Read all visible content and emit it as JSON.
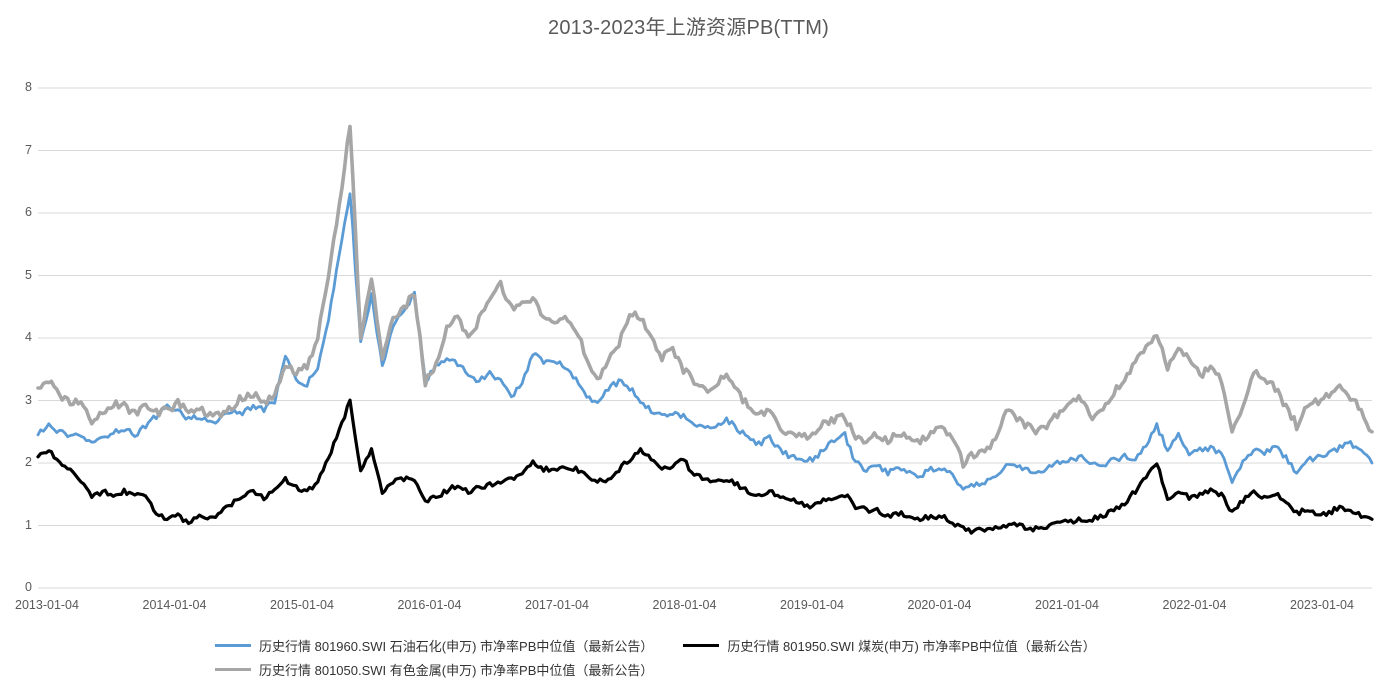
{
  "chart_data": {
    "type": "line",
    "title": "2013-2023年上游资源PB(TTM)",
    "xlabel": "",
    "ylabel": "",
    "ylim": [
      0,
      8
    ],
    "y_ticks": [
      0,
      1,
      2,
      3,
      4,
      5,
      6,
      7,
      8
    ],
    "x_tick_labels": [
      "2013-01-04",
      "2014-01-04",
      "2015-01-04",
      "2016-01-04",
      "2017-01-04",
      "2018-01-04",
      "2019-01-04",
      "2020-01-04",
      "2021-01-04",
      "2022-01-04",
      "2023-01-04"
    ],
    "x_resolution": "monthly 2013-01 to 2023-05",
    "grid": "horizontal",
    "legend_position": "bottom",
    "colors": {
      "grid": "#D9D9D9",
      "axis_text": "#595959",
      "title_text": "#595959",
      "legend_text": "#333333"
    },
    "series": [
      {
        "name": "petroleum-petrochemical",
        "label": "历史行情 801960.SWI 石油石化(申万) 市净率PB中位值（最新公告）",
        "color": "#5B9BD5",
        "values": [
          2.45,
          2.6,
          2.5,
          2.4,
          2.45,
          2.3,
          2.4,
          2.5,
          2.55,
          2.45,
          2.6,
          2.75,
          2.9,
          2.85,
          2.7,
          2.75,
          2.65,
          2.7,
          2.85,
          2.8,
          2.9,
          2.85,
          3.0,
          3.7,
          3.3,
          3.25,
          3.55,
          4.3,
          5.3,
          6.35,
          3.9,
          4.7,
          3.55,
          4.2,
          4.4,
          4.7,
          3.3,
          3.55,
          3.7,
          3.6,
          3.4,
          3.3,
          3.45,
          3.3,
          3.05,
          3.3,
          3.75,
          3.6,
          3.65,
          3.55,
          3.35,
          3.05,
          3.0,
          3.2,
          3.3,
          3.2,
          3.0,
          2.85,
          2.75,
          2.8,
          2.75,
          2.6,
          2.55,
          2.6,
          2.7,
          2.55,
          2.4,
          2.3,
          2.4,
          2.2,
          2.1,
          2.05,
          2.05,
          2.2,
          2.35,
          2.45,
          2.0,
          1.9,
          1.95,
          1.85,
          1.95,
          1.85,
          1.8,
          1.9,
          1.9,
          1.8,
          1.55,
          1.65,
          1.7,
          1.75,
          2.0,
          1.95,
          1.9,
          1.85,
          1.95,
          2.0,
          2.05,
          2.1,
          2.0,
          1.95,
          2.05,
          2.1,
          2.05,
          2.3,
          2.6,
          2.2,
          2.45,
          2.15,
          2.2,
          2.25,
          2.15,
          1.7,
          2.0,
          2.2,
          2.15,
          2.25,
          2.1,
          1.85,
          2.05,
          2.1,
          2.15,
          2.25,
          2.3,
          2.2,
          2.0
        ]
      },
      {
        "name": "coal",
        "label": "历史行情 801950.SWI 煤炭(申万) 市净率PB中位值（最新公告）",
        "color": "#000000",
        "values": [
          2.1,
          2.2,
          2.0,
          1.9,
          1.7,
          1.45,
          1.55,
          1.5,
          1.55,
          1.5,
          1.45,
          1.2,
          1.1,
          1.15,
          1.05,
          1.15,
          1.1,
          1.2,
          1.35,
          1.45,
          1.55,
          1.45,
          1.6,
          1.75,
          1.6,
          1.55,
          1.7,
          2.1,
          2.5,
          3.0,
          1.85,
          2.2,
          1.55,
          1.7,
          1.75,
          1.7,
          1.4,
          1.45,
          1.55,
          1.65,
          1.55,
          1.6,
          1.65,
          1.7,
          1.75,
          1.85,
          2.0,
          1.9,
          1.9,
          1.95,
          1.9,
          1.8,
          1.7,
          1.75,
          1.9,
          2.05,
          2.2,
          2.05,
          1.9,
          1.95,
          2.05,
          1.8,
          1.75,
          1.7,
          1.75,
          1.65,
          1.55,
          1.5,
          1.55,
          1.45,
          1.4,
          1.35,
          1.3,
          1.4,
          1.45,
          1.5,
          1.3,
          1.25,
          1.25,
          1.15,
          1.2,
          1.15,
          1.1,
          1.15,
          1.15,
          1.05,
          0.95,
          0.9,
          0.95,
          0.95,
          1.0,
          1.0,
          0.95,
          0.95,
          1.0,
          1.05,
          1.05,
          1.1,
          1.1,
          1.15,
          1.25,
          1.35,
          1.55,
          1.8,
          2.0,
          1.4,
          1.55,
          1.45,
          1.5,
          1.55,
          1.5,
          1.2,
          1.4,
          1.55,
          1.45,
          1.5,
          1.4,
          1.2,
          1.25,
          1.2,
          1.2,
          1.3,
          1.25,
          1.15,
          1.1
        ]
      },
      {
        "name": "nonferrous-metals",
        "label": "历史行情 801050.SWI 有色金属(申万) 市净率PB中位值（最新公告）",
        "color": "#A6A6A6",
        "values": [
          3.2,
          3.35,
          3.1,
          2.95,
          3.0,
          2.6,
          2.8,
          2.95,
          2.9,
          2.8,
          2.9,
          2.8,
          2.85,
          2.95,
          2.8,
          2.85,
          2.75,
          2.8,
          2.9,
          3.05,
          3.1,
          2.95,
          3.1,
          3.6,
          3.45,
          3.55,
          4.0,
          5.0,
          6.1,
          7.4,
          4.0,
          5.0,
          3.65,
          4.35,
          4.5,
          4.7,
          3.3,
          3.6,
          4.15,
          4.35,
          4.0,
          4.3,
          4.6,
          4.85,
          4.5,
          4.55,
          4.65,
          4.35,
          4.2,
          4.3,
          4.15,
          3.7,
          3.35,
          3.65,
          3.9,
          4.4,
          4.35,
          4.0,
          3.7,
          3.8,
          3.5,
          3.3,
          3.15,
          3.25,
          3.4,
          3.15,
          2.9,
          2.75,
          2.9,
          2.5,
          2.45,
          2.4,
          2.45,
          2.65,
          2.7,
          2.75,
          2.4,
          2.35,
          2.45,
          2.35,
          2.5,
          2.4,
          2.35,
          2.5,
          2.55,
          2.45,
          2.0,
          2.15,
          2.2,
          2.35,
          2.85,
          2.7,
          2.6,
          2.5,
          2.65,
          2.8,
          2.95,
          3.05,
          2.75,
          2.9,
          3.15,
          3.3,
          3.6,
          3.85,
          4.05,
          3.55,
          3.8,
          3.65,
          3.4,
          3.55,
          3.3,
          2.45,
          2.9,
          3.45,
          3.35,
          3.2,
          2.9,
          2.6,
          2.9,
          3.0,
          3.1,
          3.2,
          3.05,
          2.85,
          2.5
        ]
      }
    ]
  }
}
